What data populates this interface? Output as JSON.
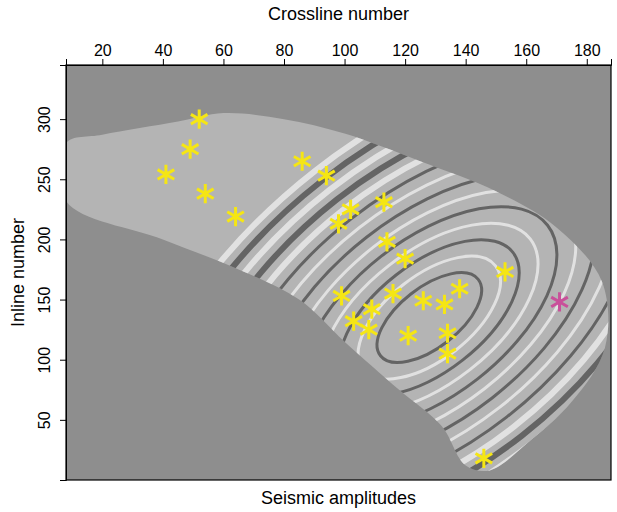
{
  "chart_data": {
    "type": "scatter",
    "title": "Seismic amplitudes",
    "x_label": "Crossline number",
    "y_label": "Inline number",
    "xlim": [
      8,
      188
    ],
    "xticks": [
      20,
      40,
      60,
      80,
      100,
      120,
      140,
      160,
      180
    ],
    "ylim": [
      0,
      345
    ],
    "yticks": [
      50,
      100,
      150,
      200,
      250,
      300
    ],
    "series": [
      {
        "color": "#f5e614",
        "marker": "star",
        "x": [
          52,
          49,
          41,
          54,
          64,
          86,
          94,
          102,
          98,
          113,
          114,
          120,
          99,
          103,
          108,
          109,
          116,
          121,
          126,
          133,
          138,
          134,
          134,
          153,
          146
        ],
        "values": [
          300,
          275,
          254,
          238,
          219,
          265,
          253,
          225,
          213,
          231,
          198,
          184,
          153,
          132,
          125,
          142,
          155,
          120,
          149,
          146,
          159,
          122,
          105,
          173,
          18
        ]
      },
      {
        "color": "#c9509a",
        "marker": "star",
        "x": [
          171
        ],
        "values": [
          148
        ]
      }
    ]
  }
}
